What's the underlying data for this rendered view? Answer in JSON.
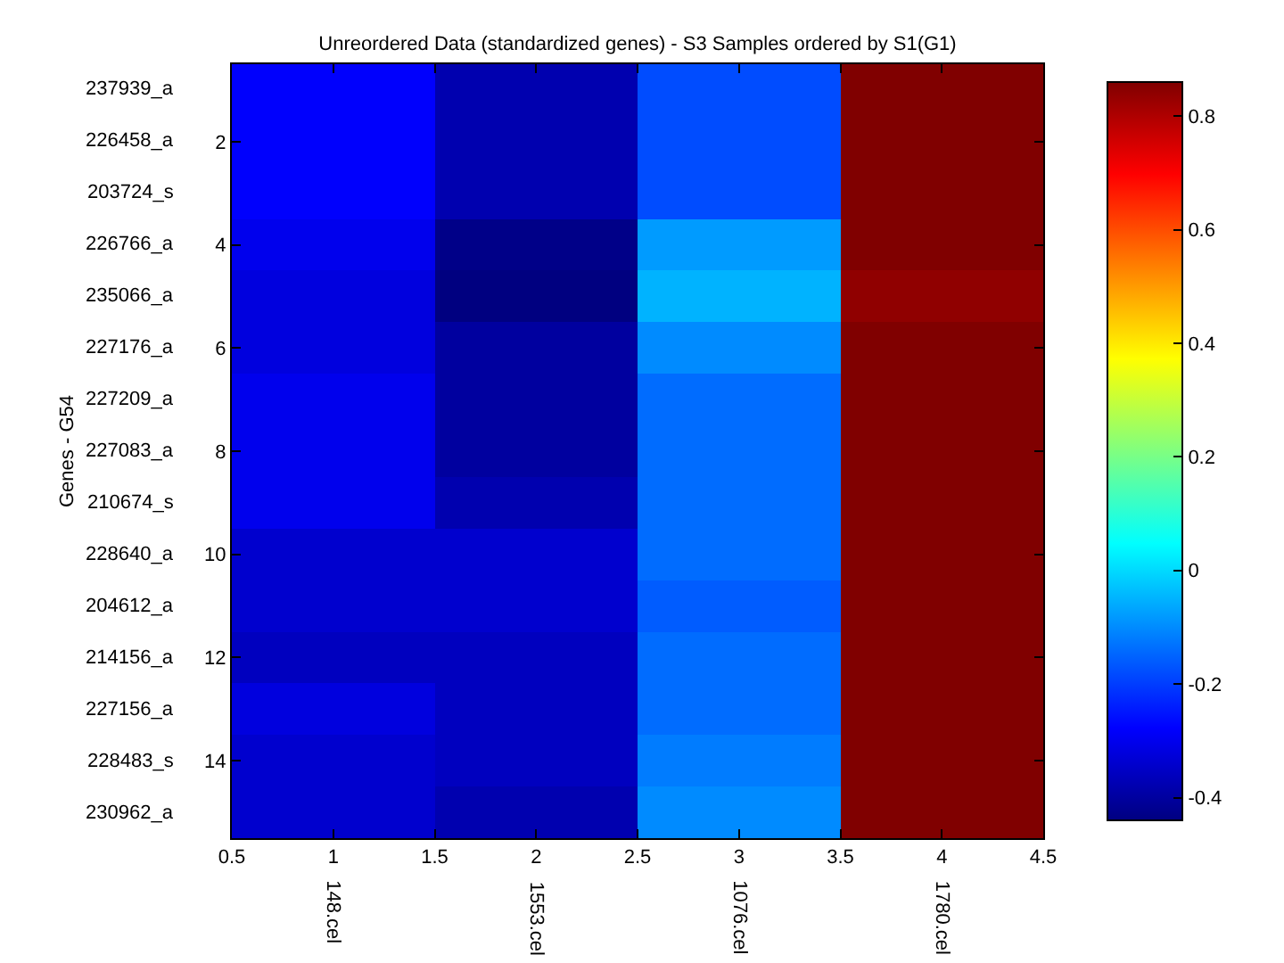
{
  "chart_data": {
    "type": "heatmap",
    "title": "Unreordered Data (standardized genes) - S3 Samples ordered by S1(G1)",
    "ylabel": "Genes - G54",
    "x": [
      1,
      2,
      3,
      4
    ],
    "y_categories": [
      "237939_a",
      "226458_a",
      "203724_s",
      "226766_a",
      "235066_a",
      "227176_a",
      "227209_a",
      "227083_a",
      "210674_s",
      "228640_a",
      "204612_a",
      "214156_a",
      "227156_a",
      "228483_s",
      "230962_a"
    ],
    "y2_categories": [
      null,
      "2",
      null,
      "4",
      null,
      "6",
      null,
      "8",
      null,
      "10",
      null,
      "12",
      null,
      "14",
      null
    ],
    "cells": [
      [
        -0.28,
        -0.38,
        -0.18,
        0.86
      ],
      [
        -0.28,
        -0.38,
        -0.18,
        0.86
      ],
      [
        -0.28,
        -0.38,
        -0.18,
        0.86
      ],
      [
        -0.3,
        -0.43,
        -0.08,
        0.86
      ],
      [
        -0.32,
        -0.44,
        -0.05,
        0.84
      ],
      [
        -0.32,
        -0.4,
        -0.1,
        0.86
      ],
      [
        -0.3,
        -0.4,
        -0.14,
        0.86
      ],
      [
        -0.3,
        -0.4,
        -0.14,
        0.86
      ],
      [
        -0.3,
        -0.38,
        -0.14,
        0.86
      ],
      [
        -0.34,
        -0.34,
        -0.14,
        0.86
      ],
      [
        -0.34,
        -0.34,
        -0.16,
        0.86
      ],
      [
        -0.36,
        -0.36,
        -0.14,
        0.86
      ],
      [
        -0.32,
        -0.36,
        -0.14,
        0.86
      ],
      [
        -0.34,
        -0.36,
        -0.12,
        0.86
      ],
      [
        -0.34,
        -0.38,
        -0.1,
        0.86
      ]
    ],
    "clim": [
      -0.44,
      0.86
    ],
    "cticks": [
      -0.4,
      -0.2,
      0,
      0.2,
      0.4,
      0.6,
      0.8
    ],
    "xlim": [
      0.5,
      4.5
    ],
    "xticks": [
      0.5,
      1,
      1.5,
      2,
      2.5,
      3,
      3.5,
      4,
      4.5
    ],
    "annotations": [
      "148.cel",
      "1553.cel",
      "1076.cel",
      "1780.cel"
    ]
  }
}
